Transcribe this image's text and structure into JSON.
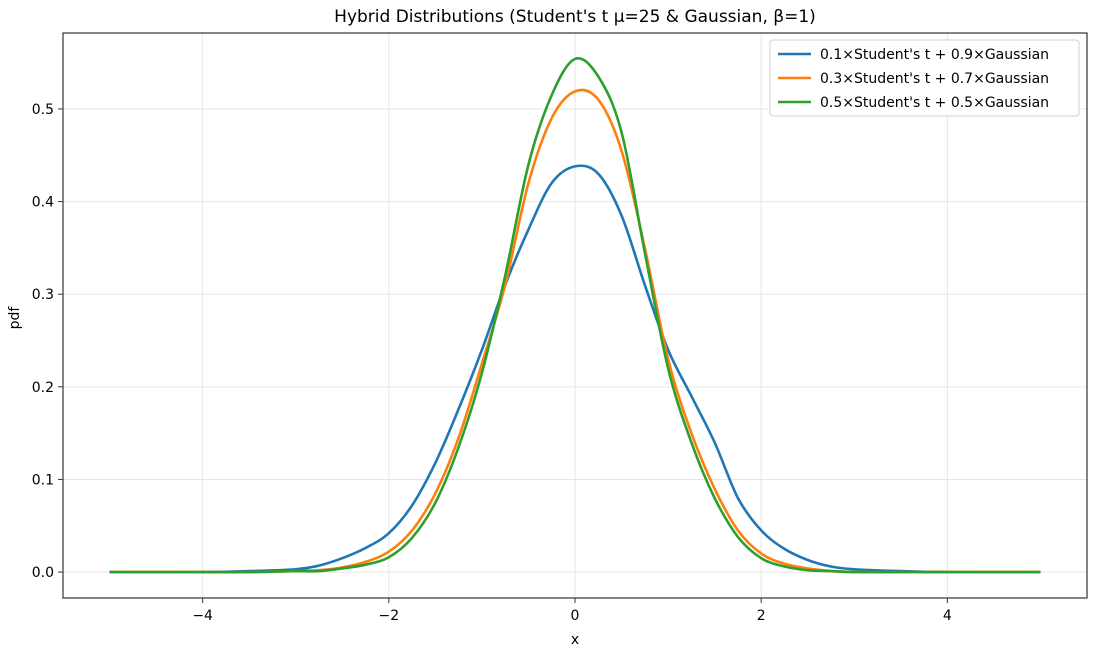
{
  "chart_data": {
    "type": "line",
    "title": "Hybrid Distributions (Student's t μ=25 & Gaussian, β=1)",
    "xlabel": "x",
    "ylabel": "pdf",
    "xlim": [
      -5.5,
      5.5
    ],
    "ylim": [
      -0.028,
      0.582
    ],
    "xticks": [
      -4,
      -2,
      0,
      2,
      4
    ],
    "xtick_labels": [
      "−4",
      "−2",
      "0",
      "2",
      "4"
    ],
    "yticks": [
      0.0,
      0.1,
      0.2,
      0.3,
      0.4,
      0.5
    ],
    "ytick_labels": [
      "0.0",
      "0.1",
      "0.2",
      "0.3",
      "0.4",
      "0.5"
    ],
    "grid": true,
    "legend_position": "upper right",
    "x": [
      -5.0,
      -4.0,
      -3.5,
      -3.0,
      -2.75,
      -2.5,
      -2.25,
      -2.0,
      -1.75,
      -1.5,
      -1.25,
      -1.0,
      -0.75,
      -0.5,
      -0.25,
      0.0,
      0.25,
      0.5,
      0.75,
      1.0,
      1.25,
      1.5,
      1.75,
      2.0,
      2.25,
      2.5,
      2.75,
      3.0,
      3.5,
      4.0,
      5.0
    ],
    "series": [
      {
        "name": "0.1×Student's t + 0.9×Gaussian",
        "color": "#1f77b4",
        "values": [
          0.0,
          0.0,
          0.001,
          0.003,
          0.007,
          0.015,
          0.026,
          0.042,
          0.072,
          0.118,
          0.176,
          0.24,
          0.31,
          0.37,
          0.42,
          0.438,
          0.43,
          0.385,
          0.31,
          0.24,
          0.19,
          0.14,
          0.08,
          0.045,
          0.025,
          0.013,
          0.006,
          0.003,
          0.001,
          0.0,
          0.0
        ]
      },
      {
        "name": "0.3×Student's t + 0.7×Gaussian",
        "color": "#ff7f0e",
        "values": [
          0.0,
          0.0,
          0.0,
          0.001,
          0.002,
          0.005,
          0.011,
          0.022,
          0.045,
          0.085,
          0.145,
          0.225,
          0.31,
          0.42,
          0.49,
          0.519,
          0.51,
          0.455,
          0.35,
          0.23,
          0.15,
          0.09,
          0.045,
          0.02,
          0.009,
          0.004,
          0.001,
          0.0,
          0.0,
          0.0,
          0.0
        ]
      },
      {
        "name": "0.5×Student's t + 0.5×Gaussian",
        "color": "#2ca02c",
        "values": [
          0.0,
          0.0,
          0.0,
          0.001,
          0.001,
          0.004,
          0.008,
          0.016,
          0.037,
          0.075,
          0.135,
          0.215,
          0.32,
          0.44,
          0.515,
          0.554,
          0.535,
          0.475,
          0.345,
          0.22,
          0.14,
          0.08,
          0.038,
          0.015,
          0.006,
          0.002,
          0.001,
          0.0,
          0.0,
          0.0,
          0.0
        ]
      }
    ]
  }
}
